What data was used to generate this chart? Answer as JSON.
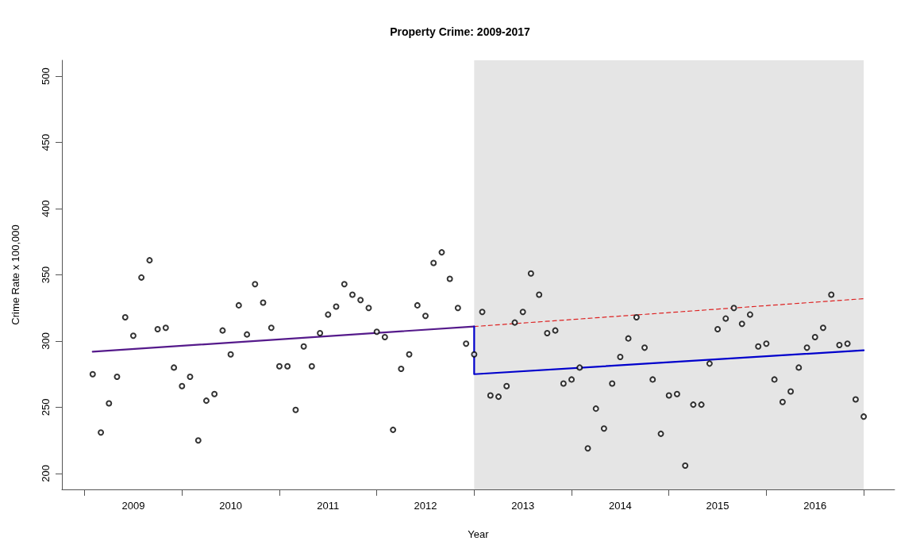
{
  "chart_data": {
    "type": "scatter",
    "title": "Property Crime: 2009-2017",
    "xlabel": "Year",
    "ylabel": "Crime Rate x 100,000",
    "xlim": [
      2008.267,
      2016.817
    ],
    "xticks": [
      {
        "value": 2008.5,
        "label": null
      },
      2009,
      {
        "value": 2009.5,
        "label": null
      },
      2010,
      {
        "value": 2010.5,
        "label": null
      },
      2011,
      {
        "value": 2011.5,
        "label": null
      },
      2012,
      {
        "value": 2012.5,
        "label": null
      },
      2013,
      {
        "value": 2013.5,
        "label": null
      },
      2014,
      {
        "value": 2014.5,
        "label": null
      },
      2015,
      {
        "value": 2015.5,
        "label": null
      },
      2016,
      {
        "value": 2016.5,
        "label": null
      }
    ],
    "ylim": [
      188,
      512
    ],
    "yticks": [
      200,
      250,
      300,
      350,
      400,
      450,
      500
    ],
    "grid": false,
    "bands": [
      {
        "axis": "x",
        "from": 2012.5,
        "to": 2016.5,
        "color": "#e5e5e5"
      }
    ],
    "series": [
      {
        "type": "scatter",
        "color": "#000000",
        "marker": "circle",
        "x": [
          2008.583,
          2008.667,
          2008.75,
          2008.833,
          2008.917,
          2009,
          2009.083,
          2009.167,
          2009.25,
          2009.333,
          2009.417,
          2009.5,
          2009.583,
          2009.667,
          2009.75,
          2009.833,
          2009.917,
          2010,
          2010.083,
          2010.167,
          2010.25,
          2010.333,
          2010.417,
          2010.5,
          2010.583,
          2010.667,
          2010.75,
          2010.833,
          2010.917,
          2011,
          2011.083,
          2011.167,
          2011.25,
          2011.333,
          2011.417,
          2011.5,
          2011.583,
          2011.667,
          2011.75,
          2011.833,
          2011.917,
          2012,
          2012.083,
          2012.167,
          2012.25,
          2012.333,
          2012.417,
          2012.5,
          2012.583,
          2012.667,
          2012.75,
          2012.833,
          2012.917,
          2013,
          2013.083,
          2013.167,
          2013.25,
          2013.333,
          2013.417,
          2013.5,
          2013.583,
          2013.667,
          2013.75,
          2013.833,
          2013.917,
          2014,
          2014.083,
          2014.167,
          2014.25,
          2014.333,
          2014.417,
          2014.5,
          2014.583,
          2014.667,
          2014.75,
          2014.833,
          2014.917,
          2015,
          2015.083,
          2015.167,
          2015.25,
          2015.333,
          2015.417,
          2015.5,
          2015.583,
          2015.667,
          2015.75,
          2015.833,
          2015.917,
          2016,
          2016.083,
          2016.167,
          2016.25,
          2016.333,
          2016.417,
          2016.5
        ],
        "values": [
          275,
          231,
          253,
          273,
          318,
          304,
          348,
          361,
          309,
          310,
          280,
          266,
          273,
          225,
          255,
          260,
          308,
          290,
          327,
          305,
          343,
          329,
          310,
          281,
          281,
          248,
          296,
          281,
          306,
          320,
          326,
          343,
          335,
          331,
          325,
          307,
          303,
          233,
          279,
          290,
          327,
          319,
          359,
          367,
          347,
          325,
          298,
          290,
          322,
          259,
          258,
          266,
          314,
          322,
          351,
          335,
          306,
          308,
          268,
          271,
          280,
          219,
          249,
          234,
          268,
          288,
          302,
          318,
          295,
          271,
          230,
          259,
          260,
          206,
          252,
          252,
          283,
          309,
          317,
          325,
          313,
          320,
          296,
          298,
          271,
          254,
          262,
          280,
          295,
          303,
          310,
          335,
          297,
          298,
          256,
          243
        ]
      },
      {
        "type": "line",
        "color": "#551a8b",
        "line_style": "solid",
        "x": [
          2008.583,
          2012.5
        ],
        "values": [
          292,
          311
        ]
      },
      {
        "type": "line",
        "color": "#dd2222",
        "line_style": "dashed",
        "x": [
          2012.5,
          2016.5
        ],
        "values": [
          311,
          332
        ]
      },
      {
        "type": "line",
        "color": "#0000cc",
        "line_style": "solid",
        "x": [
          2012.5,
          2012.5,
          2016.5
        ],
        "values": [
          311,
          275,
          293
        ]
      }
    ]
  }
}
